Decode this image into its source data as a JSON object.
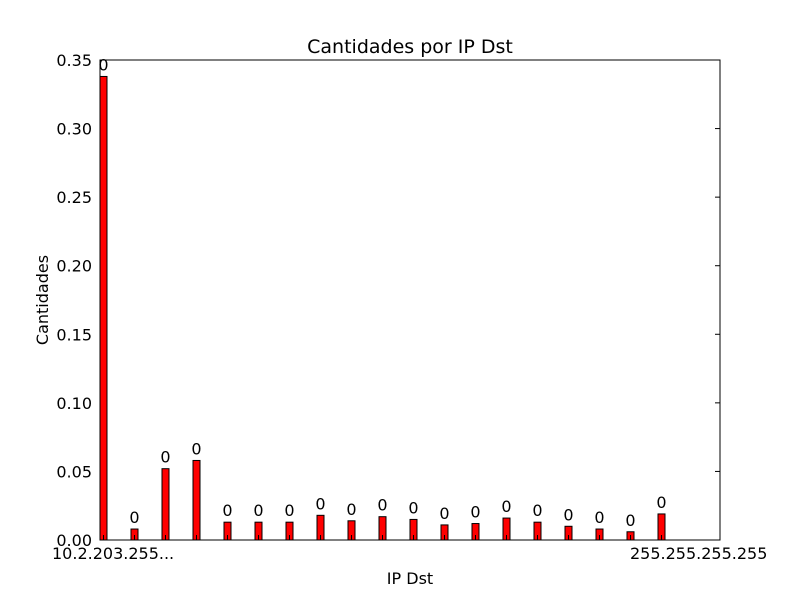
{
  "chart_data": {
    "type": "bar",
    "title": "Cantidades por IP Dst",
    "xlabel": "IP Dst",
    "ylabel": "Cantidades",
    "ylim": [
      0,
      0.35
    ],
    "yticks": [
      "0.00",
      "0.05",
      "0.10",
      "0.15",
      "0.20",
      "0.25",
      "0.30",
      "0.35"
    ],
    "x_tick_text": "10.2.203.255...",
    "x_tick_text_end": "255.255.255.255",
    "values": [
      0.338,
      0.008,
      0.052,
      0.058,
      0.013,
      0.013,
      0.013,
      0.018,
      0.014,
      0.017,
      0.015,
      0.011,
      0.012,
      0.016,
      0.013,
      0.01,
      0.008,
      0.006,
      0.019
    ],
    "bar_labels": [
      "0",
      "0",
      "0",
      "0",
      "0",
      "0",
      "0",
      "0",
      "0",
      "0",
      "0",
      "0",
      "0",
      "0",
      "0",
      "0",
      "0",
      "0",
      "0"
    ],
    "bar_color": "#ff0000",
    "grid": false
  }
}
